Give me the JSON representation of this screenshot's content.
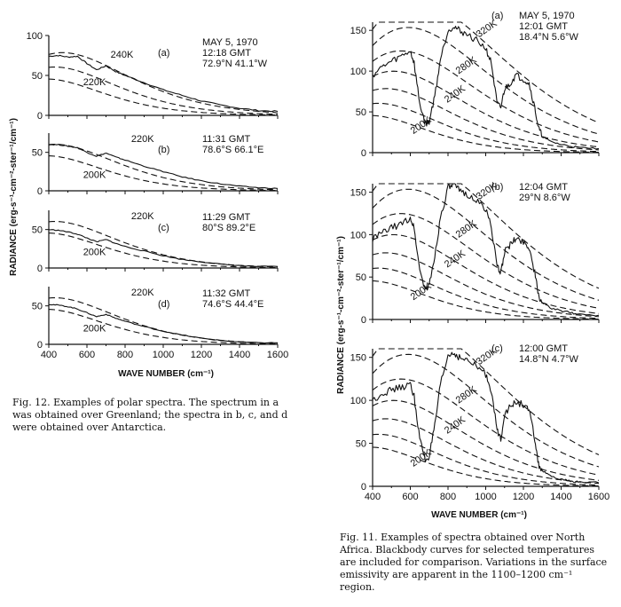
{
  "figures": {
    "fig12": {
      "caption": "Fig. 12. Examples of polar spectra. The spectrum in a was obtained over Greenland; the spectra in b, c, and d were obtained over Antarctica.",
      "ylabel": "RADIANCE (erg-s⁻¹-cm⁻²-ster⁻¹/cm⁻¹)",
      "xlabel": "WAVE NUMBER (cm⁻¹)"
    },
    "fig11": {
      "caption": "Fig. 11. Examples of spectra obtained over North Africa. Blackbody curves for selected temperatures are included for comparison. Variations in the surface emissivity are apparent in the 1100–1200 cm⁻¹ region.",
      "ylabel": "RADIANCE (erg-s⁻¹-cm⁻²-ster⁻¹/cm⁻¹)",
      "xlabel": "WAVE NUMBER (cm⁻¹)"
    }
  },
  "chart_data": [
    {
      "type": "line",
      "figure": "fig12",
      "panel": "(a)",
      "info": [
        "MAY 5, 1970",
        "12:18 GMT",
        "72.9°N  41.1°W"
      ],
      "xlim": [
        400,
        1600
      ],
      "ylim": [
        0,
        100
      ],
      "yticks": [
        0,
        50,
        100
      ],
      "xticks": [],
      "curve_labels": [
        "240K",
        "220K"
      ],
      "blackbody": [
        {
          "temp": 240
        },
        {
          "temp": 220
        },
        {
          "temp": 200
        }
      ],
      "x": [
        400,
        450,
        500,
        550,
        600,
        650,
        700,
        750,
        800,
        900,
        1000,
        1100,
        1200,
        1300,
        1400,
        1500,
        1600
      ],
      "y": [
        74,
        75,
        73,
        74,
        65,
        57,
        62,
        55,
        50,
        41,
        32,
        25,
        18,
        13,
        9,
        6,
        5
      ]
    },
    {
      "type": "line",
      "figure": "fig12",
      "panel": "(b)",
      "info": [
        "11:31 GMT",
        "78.6°S  66.1°E"
      ],
      "xlim": [
        400,
        1600
      ],
      "ylim": [
        0,
        75
      ],
      "yticks": [
        0,
        50
      ],
      "xticks": [],
      "curve_labels": [
        "220K",
        "200K"
      ],
      "blackbody": [
        {
          "temp": 220
        },
        {
          "temp": 200
        }
      ],
      "x": [
        400,
        450,
        500,
        550,
        600,
        650,
        700,
        750,
        800,
        900,
        1000,
        1100,
        1200,
        1300,
        1400,
        1500,
        1600
      ],
      "y": [
        60,
        60,
        58,
        56,
        50,
        45,
        49,
        44,
        40,
        32,
        25,
        18,
        13,
        9,
        6,
        4,
        3
      ]
    },
    {
      "type": "line",
      "figure": "fig12",
      "panel": "(c)",
      "info": [
        "11:29 GMT",
        "80°S  89.2°E"
      ],
      "xlim": [
        400,
        1600
      ],
      "ylim": [
        0,
        75
      ],
      "yticks": [
        0,
        50
      ],
      "xticks": [],
      "curve_labels": [
        "220K",
        "200K"
      ],
      "blackbody": [
        {
          "temp": 220
        },
        {
          "temp": 200
        }
      ],
      "x": [
        400,
        450,
        500,
        550,
        600,
        650,
        700,
        750,
        800,
        900,
        1000,
        1100,
        1200,
        1300,
        1400,
        1500,
        1600
      ],
      "y": [
        50,
        49,
        47,
        44,
        39,
        34,
        37,
        32,
        28,
        22,
        16,
        11,
        8,
        5,
        3,
        2,
        2
      ]
    },
    {
      "type": "line",
      "figure": "fig12",
      "panel": "(d)",
      "info": [
        "11:32 GMT",
        "74.6°S  44.4°E"
      ],
      "xlim": [
        400,
        1600
      ],
      "ylim": [
        0,
        75
      ],
      "yticks": [
        0,
        50
      ],
      "xticks": [
        400,
        600,
        800,
        1000,
        1200,
        1400,
        1600
      ],
      "curve_labels": [
        "220K",
        "200K"
      ],
      "blackbody": [
        {
          "temp": 220
        },
        {
          "temp": 200
        }
      ],
      "x": [
        400,
        450,
        500,
        550,
        600,
        650,
        700,
        750,
        800,
        900,
        1000,
        1100,
        1200,
        1300,
        1400,
        1500,
        1600
      ],
      "y": [
        52,
        51,
        49,
        46,
        41,
        36,
        39,
        34,
        30,
        23,
        17,
        12,
        8,
        5,
        3,
        2,
        2
      ]
    },
    {
      "type": "line",
      "figure": "fig11",
      "panel": "(a)",
      "info": [
        "MAY 5, 1970",
        "12:01 GMT",
        "18.4°N  5.6°W"
      ],
      "xlim": [
        400,
        1600
      ],
      "ylim": [
        0,
        160
      ],
      "yticks": [
        0,
        50,
        100,
        150
      ],
      "xticks": [],
      "curve_labels": [
        "320K",
        "280K",
        "240K",
        "200K"
      ],
      "blackbody": [
        {
          "temp": 320
        },
        {
          "temp": 300
        },
        {
          "temp": 280
        },
        {
          "temp": 260
        },
        {
          "temp": 240
        },
        {
          "temp": 220
        },
        {
          "temp": 200
        }
      ],
      "x": [
        400,
        450,
        500,
        550,
        600,
        620,
        650,
        680,
        700,
        730,
        760,
        800,
        830,
        860,
        900,
        950,
        1000,
        1030,
        1060,
        1080,
        1100,
        1130,
        1160,
        1200,
        1230,
        1260,
        1280,
        1300,
        1340,
        1400,
        1450,
        1500,
        1600
      ],
      "y": [
        95,
        105,
        112,
        118,
        125,
        110,
        60,
        35,
        38,
        70,
        115,
        150,
        155,
        150,
        145,
        138,
        128,
        110,
        60,
        55,
        78,
        85,
        95,
        90,
        85,
        55,
        30,
        20,
        14,
        10,
        8,
        6,
        5
      ]
    },
    {
      "type": "line",
      "figure": "fig11",
      "panel": "(b)",
      "info": [
        "12:04 GMT",
        "29°N  8.6°W"
      ],
      "xlim": [
        400,
        1600
      ],
      "ylim": [
        0,
        160
      ],
      "yticks": [
        0,
        50,
        100,
        150
      ],
      "xticks": [],
      "curve_labels": [
        "320K",
        "280K",
        "240K",
        "200K"
      ],
      "blackbody": [
        {
          "temp": 320
        },
        {
          "temp": 300
        },
        {
          "temp": 280
        },
        {
          "temp": 260
        },
        {
          "temp": 240
        },
        {
          "temp": 220
        },
        {
          "temp": 200
        }
      ],
      "x": [
        400,
        450,
        500,
        550,
        600,
        620,
        650,
        680,
        700,
        730,
        760,
        800,
        830,
        860,
        900,
        950,
        1000,
        1030,
        1060,
        1080,
        1100,
        1130,
        1160,
        1200,
        1230,
        1260,
        1280,
        1300,
        1340,
        1400,
        1450,
        1500,
        1600
      ],
      "y": [
        95,
        102,
        108,
        112,
        120,
        108,
        58,
        35,
        40,
        75,
        120,
        155,
        158,
        152,
        148,
        140,
        130,
        110,
        62,
        55,
        80,
        88,
        95,
        92,
        85,
        55,
        28,
        20,
        14,
        10,
        8,
        6,
        5
      ]
    },
    {
      "type": "line",
      "figure": "fig11",
      "panel": "(c)",
      "info": [
        "12:00 GMT",
        "14.8°N  4.7°W"
      ],
      "xlim": [
        400,
        1600
      ],
      "ylim": [
        0,
        160
      ],
      "yticks": [
        0,
        50,
        100,
        150
      ],
      "xticks": [
        400,
        600,
        800,
        1000,
        1200,
        1400,
        1600
      ],
      "curve_labels": [
        "320K",
        "280K",
        "240K",
        "200K"
      ],
      "blackbody": [
        {
          "temp": 320
        },
        {
          "temp": 300
        },
        {
          "temp": 280
        },
        {
          "temp": 260
        },
        {
          "temp": 240
        },
        {
          "temp": 220
        },
        {
          "temp": 200
        }
      ],
      "x": [
        400,
        450,
        500,
        550,
        600,
        620,
        650,
        680,
        700,
        730,
        760,
        800,
        830,
        860,
        900,
        950,
        1000,
        1030,
        1060,
        1080,
        1100,
        1130,
        1160,
        1200,
        1230,
        1260,
        1280,
        1300,
        1340,
        1400,
        1450,
        1500,
        1600
      ],
      "y": [
        100,
        108,
        112,
        115,
        118,
        105,
        55,
        30,
        35,
        70,
        118,
        152,
        155,
        150,
        146,
        140,
        130,
        112,
        65,
        55,
        85,
        92,
        98,
        95,
        88,
        55,
        25,
        18,
        12,
        8,
        6,
        5,
        4
      ]
    }
  ]
}
